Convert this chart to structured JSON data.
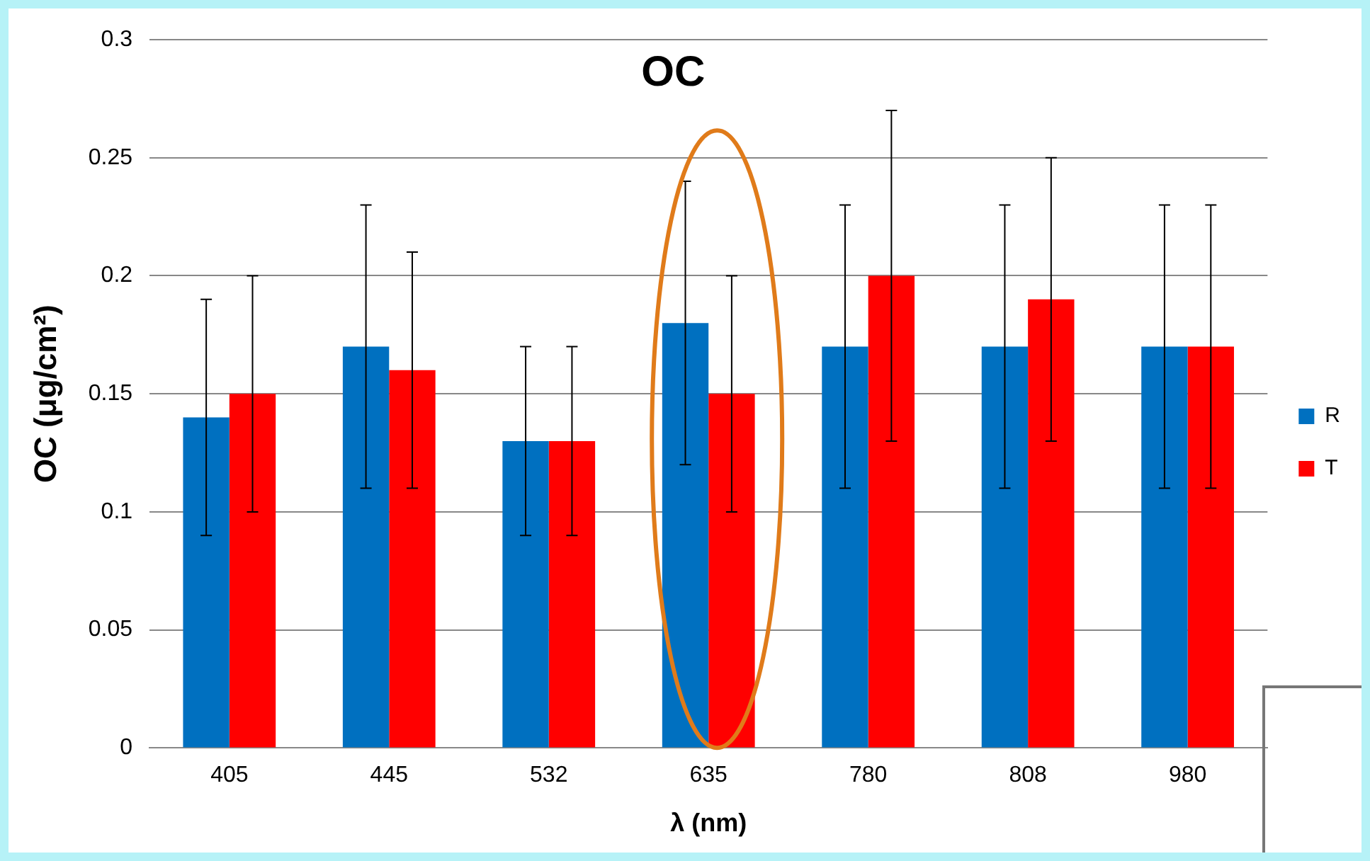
{
  "chart_data": {
    "type": "bar",
    "title": "OC",
    "xlabel": "λ (nm)",
    "ylabel": "OC (μg/cm²)",
    "categories": [
      "405",
      "445",
      "532",
      "635",
      "780",
      "808",
      "980"
    ],
    "series": [
      {
        "name": "R",
        "color": "#0070c0",
        "values": [
          0.14,
          0.17,
          0.13,
          0.18,
          0.17,
          0.17,
          0.17
        ],
        "errors": [
          [
            0.09,
            0.19
          ],
          [
            0.11,
            0.23
          ],
          [
            0.09,
            0.17
          ],
          [
            0.12,
            0.24
          ],
          [
            0.11,
            0.23
          ],
          [
            0.11,
            0.23
          ],
          [
            0.11,
            0.23
          ]
        ]
      },
      {
        "name": "T",
        "color": "#ff0000",
        "values": [
          0.15,
          0.16,
          0.13,
          0.15,
          0.2,
          0.19,
          0.17
        ],
        "errors": [
          [
            0.1,
            0.2
          ],
          [
            0.11,
            0.21
          ],
          [
            0.09,
            0.17
          ],
          [
            0.1,
            0.2
          ],
          [
            0.13,
            0.27
          ],
          [
            0.13,
            0.25
          ],
          [
            0.11,
            0.23
          ]
        ]
      }
    ],
    "ylim": [
      0,
      0.3
    ],
    "yticks": [
      0,
      0.05,
      0.1,
      0.15,
      0.2,
      0.25,
      0.3
    ],
    "grid": "y",
    "legend": "right"
  }
}
